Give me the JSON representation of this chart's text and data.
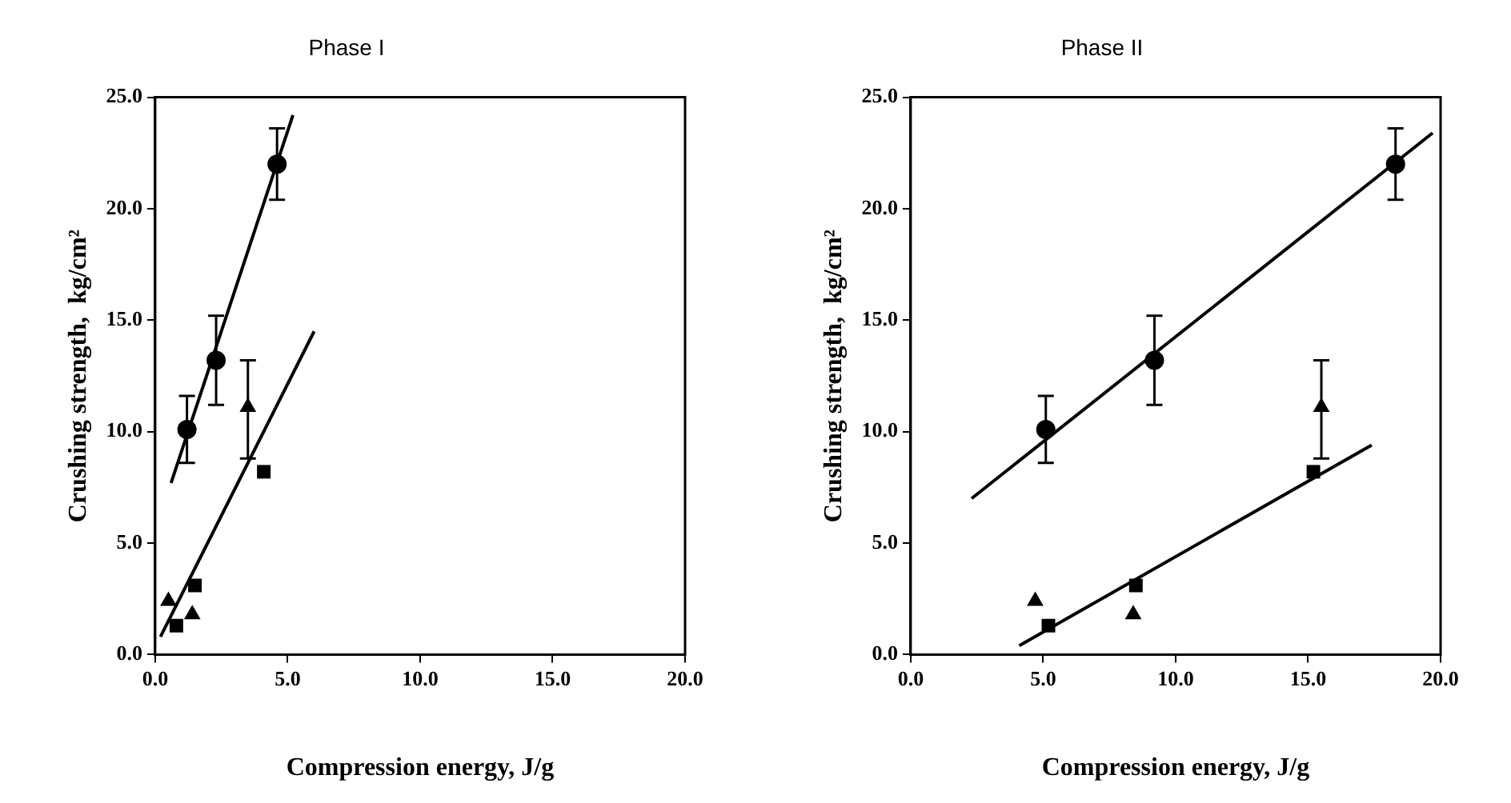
{
  "chart_data": [
    {
      "type": "scatter",
      "title": "Phase I",
      "xlabel": "Compression energy, J/g",
      "ylabel": "Crushing strength,  kg/cm²",
      "xlim": [
        0,
        20
      ],
      "ylim": [
        0,
        25
      ],
      "xticks": [
        {
          "value": 0,
          "label": "0.0"
        },
        {
          "value": 5,
          "label": "5.0"
        },
        {
          "value": 10,
          "label": "10.0"
        },
        {
          "value": 15,
          "label": "15.0"
        },
        {
          "value": 20,
          "label": "20.0"
        }
      ],
      "yticks": [
        {
          "value": 0,
          "label": "0.0"
        },
        {
          "value": 5,
          "label": "5.0"
        },
        {
          "value": 10,
          "label": "10.0"
        },
        {
          "value": 15,
          "label": "15.0"
        },
        {
          "value": 20,
          "label": "20.0"
        },
        {
          "value": 25,
          "label": "25.0"
        }
      ],
      "grid": false,
      "series": [
        {
          "color": "#000000",
          "marker": "circle",
          "x": [
            1.2,
            2.3,
            4.6
          ],
          "values": [
            10.1,
            13.2,
            22.0
          ],
          "errors": [
            [
              8.6,
              11.6
            ],
            [
              11.2,
              15.2
            ],
            [
              20.4,
              23.6
            ]
          ]
        },
        {
          "color": "#000000",
          "marker": "triangle",
          "x": [
            0.5,
            1.4,
            3.5
          ],
          "values": [
            2.4,
            1.8,
            11.1
          ],
          "errors": [
            null,
            null,
            [
              8.8,
              13.2
            ]
          ]
        },
        {
          "color": "#000000",
          "marker": "square",
          "x": [
            0.8,
            1.5,
            4.1
          ],
          "values": [
            1.3,
            3.1,
            8.2
          ]
        },
        {
          "type": "line",
          "color": "#000000",
          "marker": "none",
          "x": [
            0.6,
            5.2
          ],
          "values": [
            7.7,
            24.2
          ]
        },
        {
          "type": "line",
          "color": "#000000",
          "marker": "none",
          "x": [
            0.2,
            6.0
          ],
          "values": [
            0.8,
            14.5
          ]
        }
      ]
    },
    {
      "type": "scatter",
      "title": "Phase II",
      "xlabel": "Compression energy, J/g",
      "ylabel": "Crushing strength,  kg/cm²",
      "xlim": [
        0,
        20
      ],
      "ylim": [
        0,
        25
      ],
      "xticks": [
        {
          "value": 0,
          "label": "0.0"
        },
        {
          "value": 5,
          "label": "5.0"
        },
        {
          "value": 10,
          "label": "10.0"
        },
        {
          "value": 15,
          "label": "15.0"
        },
        {
          "value": 20,
          "label": "20.0"
        }
      ],
      "yticks": [
        {
          "value": 0,
          "label": "0.0"
        },
        {
          "value": 5,
          "label": "5.0"
        },
        {
          "value": 10,
          "label": "10.0"
        },
        {
          "value": 15,
          "label": "15.0"
        },
        {
          "value": 20,
          "label": "20.0"
        },
        {
          "value": 25,
          "label": "25.0"
        }
      ],
      "grid": false,
      "series": [
        {
          "color": "#000000",
          "marker": "circle",
          "x": [
            5.1,
            9.2,
            18.3
          ],
          "values": [
            10.1,
            13.2,
            22.0
          ],
          "errors": [
            [
              8.6,
              11.6
            ],
            [
              11.2,
              15.2
            ],
            [
              20.4,
              23.6
            ]
          ]
        },
        {
          "color": "#000000",
          "marker": "triangle",
          "x": [
            4.7,
            8.4,
            15.5
          ],
          "values": [
            2.4,
            1.8,
            11.1
          ],
          "errors": [
            null,
            null,
            [
              8.8,
              13.2
            ]
          ]
        },
        {
          "color": "#000000",
          "marker": "square",
          "x": [
            5.2,
            8.5,
            15.2
          ],
          "values": [
            1.3,
            3.1,
            8.2
          ]
        },
        {
          "type": "line",
          "color": "#000000",
          "marker": "none",
          "x": [
            2.3,
            19.7
          ],
          "values": [
            7.0,
            23.4
          ]
        },
        {
          "type": "line",
          "color": "#000000",
          "marker": "none",
          "x": [
            4.1,
            17.4
          ],
          "values": [
            0.4,
            9.4
          ]
        }
      ]
    }
  ]
}
